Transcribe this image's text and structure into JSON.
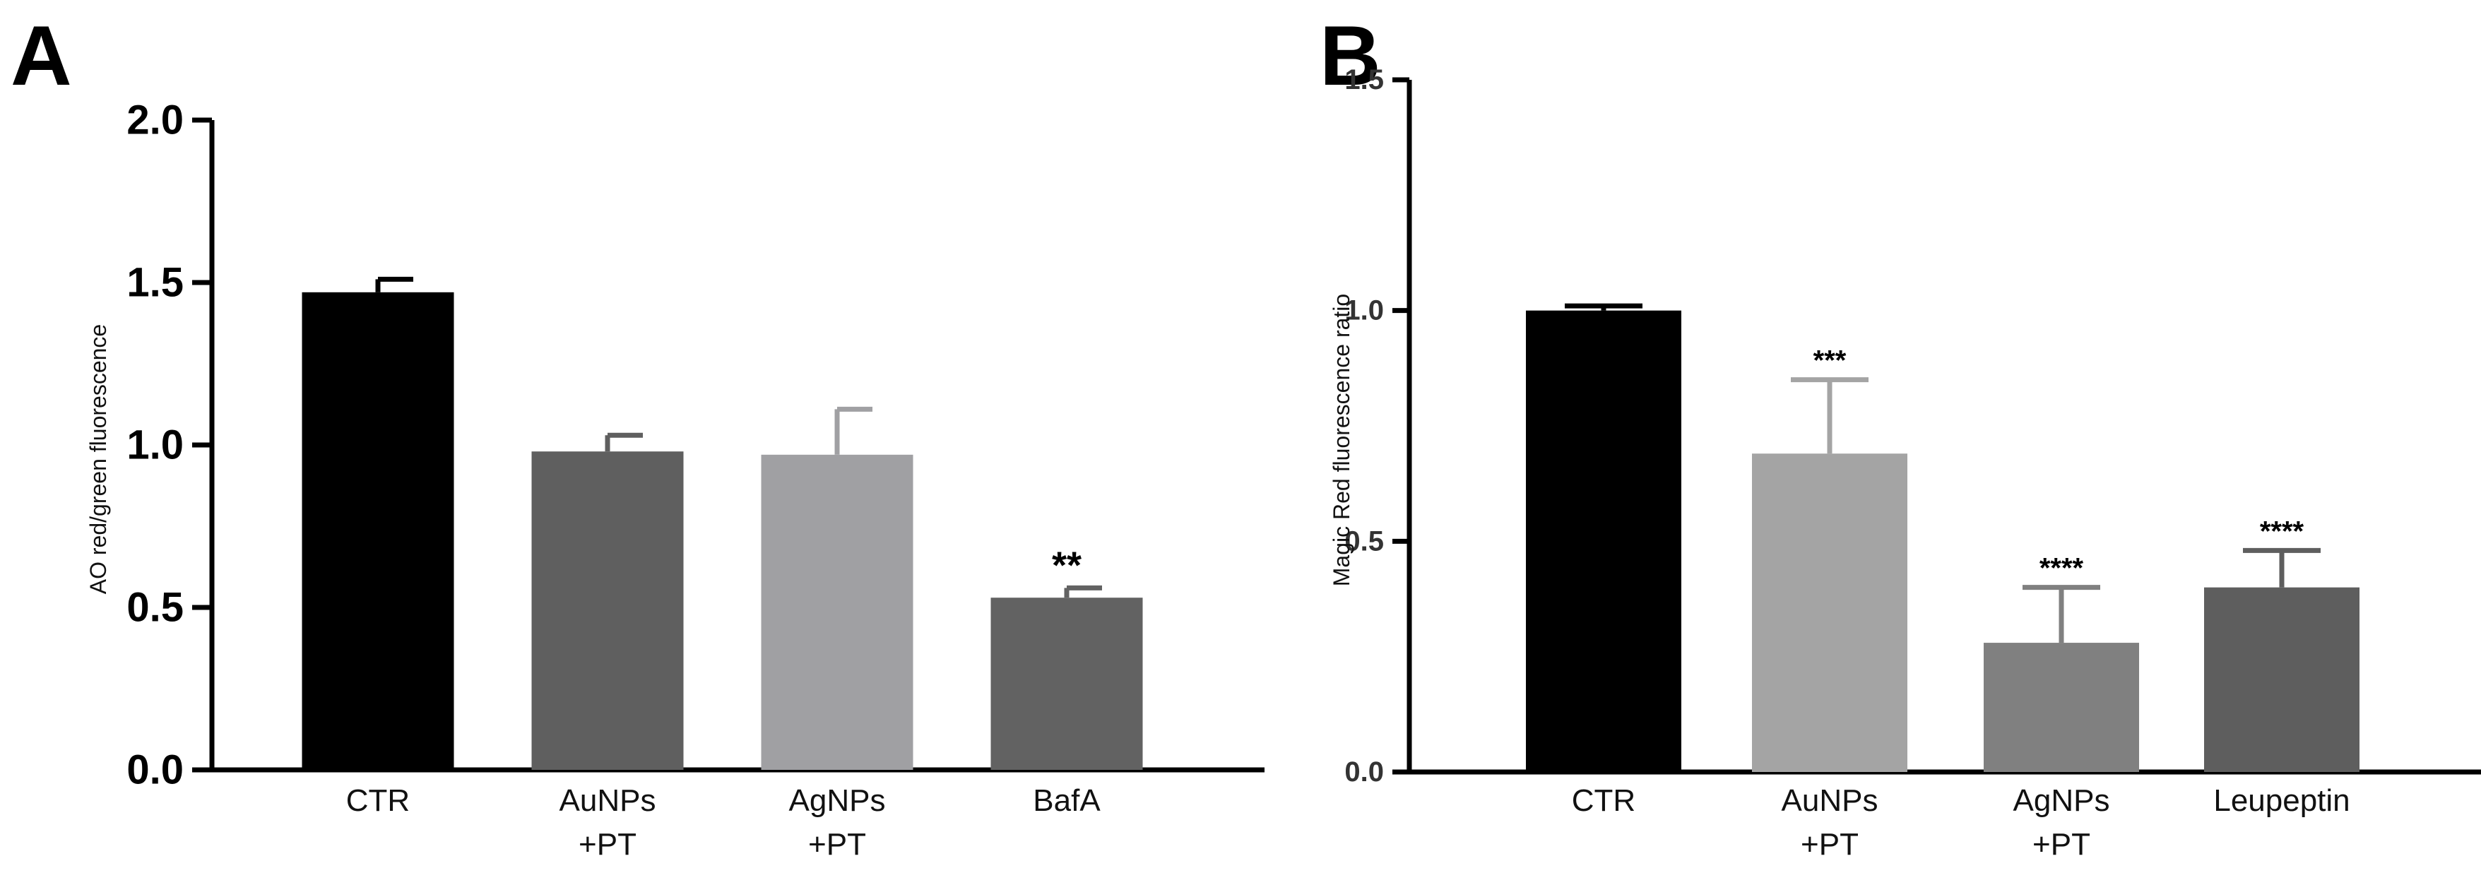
{
  "chart_data": [
    {
      "type": "bar",
      "panel_label": "A",
      "ylabel": "AO red/green fluorescence",
      "ylim": [
        0,
        2.0
      ],
      "yticks": [
        "0.0",
        "0.5",
        "1.0",
        "1.5",
        "2.0"
      ],
      "categories": [
        [
          "CTR"
        ],
        [
          "AuNPs",
          "+PT"
        ],
        [
          "AgNPs",
          "+PT"
        ],
        [
          "BafA"
        ]
      ],
      "values": [
        1.47,
        0.98,
        0.97,
        0.53
      ],
      "errors": [
        0.04,
        0.05,
        0.14,
        0.03
      ],
      "colors": [
        "#000000",
        "#5f5f5f",
        "#a0a0a3",
        "#626262"
      ],
      "significance": [
        "",
        "",
        "",
        "**"
      ],
      "grid": false,
      "legend": "none"
    },
    {
      "type": "bar",
      "panel_label": "B",
      "ylabel": "Magic Red fluorescence ratio",
      "ylim": [
        0,
        1.5
      ],
      "yticks": [
        "0.0",
        "0.5",
        "1.0",
        "1.5"
      ],
      "categories": [
        [
          "CTR"
        ],
        [
          "AuNPs",
          "+PT"
        ],
        [
          "AgNPs",
          "+PT"
        ],
        [
          "Leupeptin"
        ]
      ],
      "values": [
        1.0,
        0.69,
        0.28,
        0.4
      ],
      "errors": [
        0.01,
        0.16,
        0.12,
        0.08
      ],
      "colors": [
        "#000000",
        "#a4a4a4",
        "#808080",
        "#5e5e5e"
      ],
      "significance": [
        "",
        "***",
        "****",
        "****"
      ],
      "grid": false,
      "legend": "none"
    }
  ]
}
